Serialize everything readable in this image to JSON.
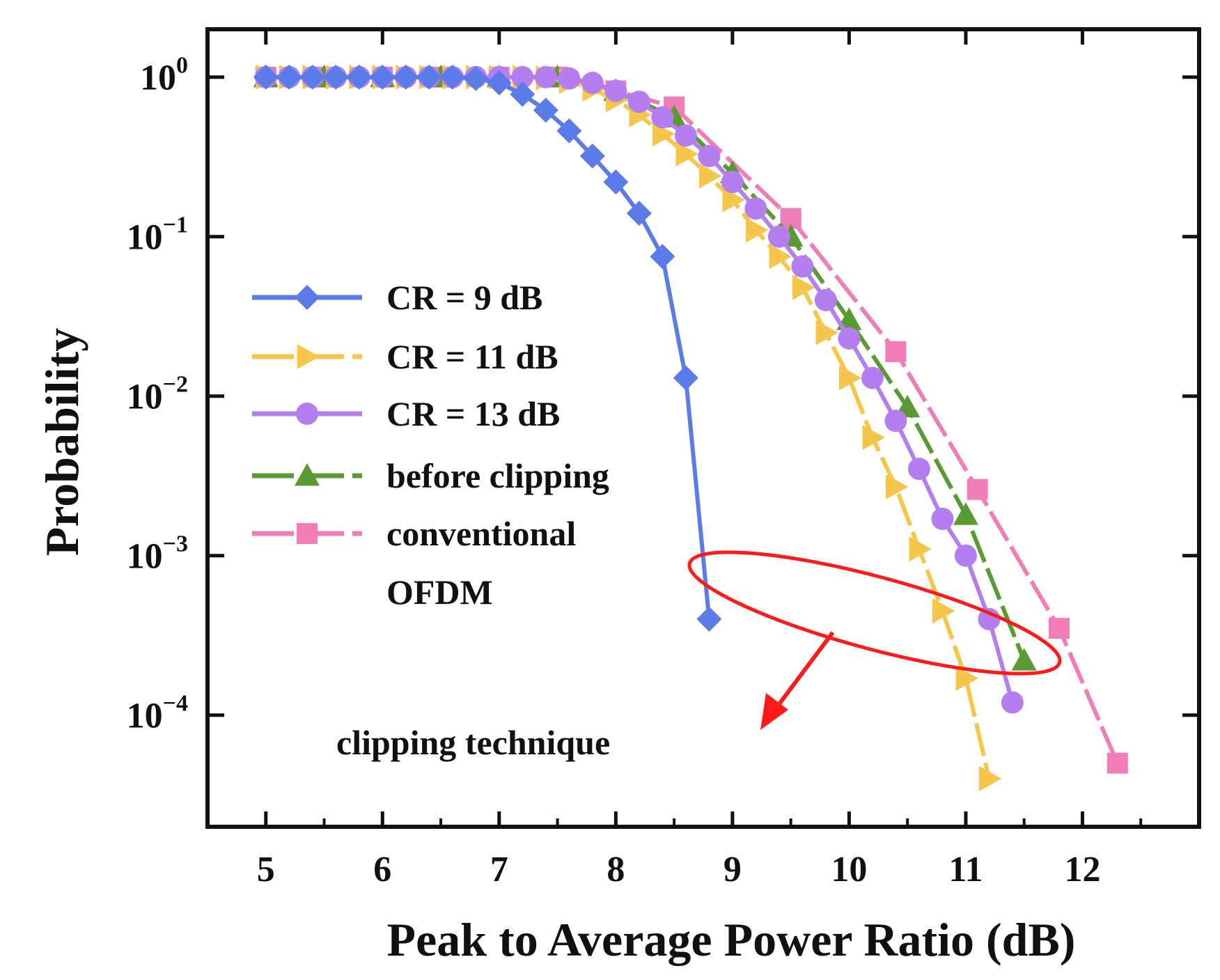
{
  "chart_data": {
    "type": "line",
    "title": "",
    "xlabel": "Peak to Average Power Ratio (dB)",
    "ylabel": "Probability",
    "xlim": [
      4.5,
      13.0
    ],
    "ylim_log10": [
      -4.7,
      0.3
    ],
    "yscale": "log",
    "x_ticks": [
      5,
      6,
      7,
      8,
      9,
      10,
      11,
      12
    ],
    "y_ticks": [
      {
        "exp": 0,
        "base": "10",
        "sup": "0"
      },
      {
        "exp": -1,
        "base": "10",
        "sup": "−1"
      },
      {
        "exp": -2,
        "base": "10",
        "sup": "−2"
      },
      {
        "exp": -3,
        "base": "10",
        "sup": "−3"
      },
      {
        "exp": -4,
        "base": "10",
        "sup": "−4"
      }
    ],
    "legend_position": "center-left",
    "series": [
      {
        "name": "CR = 9 dB",
        "color": "#5b7be8",
        "marker": "diamond",
        "dash": "solid",
        "x": [
          5.0,
          5.2,
          5.4,
          5.6,
          5.8,
          6.0,
          6.2,
          6.4,
          6.6,
          6.8,
          7.0,
          7.2,
          7.4,
          7.6,
          7.8,
          8.0,
          8.2,
          8.4,
          8.6,
          8.8
        ],
        "y": [
          1.0,
          1.0,
          1.0,
          1.0,
          1.0,
          1.0,
          1.0,
          1.0,
          1.0,
          0.98,
          0.92,
          0.78,
          0.62,
          0.46,
          0.32,
          0.22,
          0.14,
          0.075,
          0.013,
          0.0004
        ]
      },
      {
        "name": "CR = 11 dB",
        "color": "#f5c64a",
        "marker": "triangle-right",
        "dash": "dashed",
        "x": [
          5.0,
          5.2,
          5.4,
          5.6,
          5.8,
          6.0,
          6.2,
          6.4,
          6.6,
          6.8,
          7.0,
          7.2,
          7.4,
          7.6,
          7.8,
          8.0,
          8.2,
          8.4,
          8.6,
          8.8,
          9.0,
          9.2,
          9.4,
          9.6,
          9.8,
          10.0,
          10.2,
          10.4,
          10.6,
          10.8,
          11.0,
          11.2
        ],
        "y": [
          1.0,
          1.0,
          1.0,
          1.0,
          1.0,
          1.0,
          1.0,
          1.0,
          1.0,
          1.0,
          1.0,
          1.0,
          0.99,
          0.94,
          0.84,
          0.72,
          0.58,
          0.44,
          0.33,
          0.24,
          0.17,
          0.11,
          0.075,
          0.048,
          0.025,
          0.013,
          0.0055,
          0.0027,
          0.0011,
          0.00045,
          0.00017,
          4e-05
        ]
      },
      {
        "name": "CR = 13 dB",
        "color": "#b57ef0",
        "marker": "circle",
        "dash": "solid",
        "x": [
          5.0,
          5.2,
          5.4,
          5.6,
          5.8,
          6.0,
          6.2,
          6.4,
          6.6,
          6.8,
          7.0,
          7.2,
          7.4,
          7.6,
          7.8,
          8.0,
          8.2,
          8.4,
          8.6,
          8.8,
          9.0,
          9.2,
          9.4,
          9.6,
          9.8,
          10.0,
          10.2,
          10.4,
          10.6,
          10.8,
          11.0,
          11.2,
          11.4
        ],
        "y": [
          1.0,
          1.0,
          1.0,
          1.0,
          1.0,
          1.0,
          1.0,
          1.0,
          1.0,
          1.0,
          1.0,
          1.0,
          1.0,
          0.98,
          0.92,
          0.82,
          0.7,
          0.56,
          0.43,
          0.32,
          0.22,
          0.15,
          0.1,
          0.065,
          0.04,
          0.023,
          0.013,
          0.007,
          0.0035,
          0.0017,
          0.001,
          0.0004,
          0.00012
        ]
      },
      {
        "name": "before clipping",
        "color": "#5a9a32",
        "marker": "triangle-up",
        "dash": "dashed",
        "x": [
          5.0,
          5.5,
          6.0,
          6.5,
          7.0,
          7.5,
          8.0,
          8.5,
          9.0,
          9.5,
          10.0,
          10.5,
          11.0,
          11.5
        ],
        "y": [
          1.0,
          1.0,
          1.0,
          1.0,
          1.0,
          1.0,
          0.82,
          0.56,
          0.25,
          0.1,
          0.03,
          0.0085,
          0.0018,
          0.00022
        ]
      },
      {
        "name": "conventional OFDM",
        "color": "#f07cb8",
        "marker": "square",
        "dash": "dashed",
        "x": [
          5.0,
          5.5,
          6.0,
          6.5,
          7.0,
          7.5,
          8.0,
          8.5,
          9.5,
          10.4,
          11.1,
          11.8,
          12.3
        ],
        "y": [
          1.0,
          1.0,
          1.0,
          1.0,
          1.0,
          1.0,
          0.82,
          0.65,
          0.13,
          0.019,
          0.0026,
          0.00035,
          5e-05
        ]
      }
    ],
    "annotations": [
      {
        "text": "clipping technique",
        "color": "#ff1a1a"
      }
    ]
  }
}
